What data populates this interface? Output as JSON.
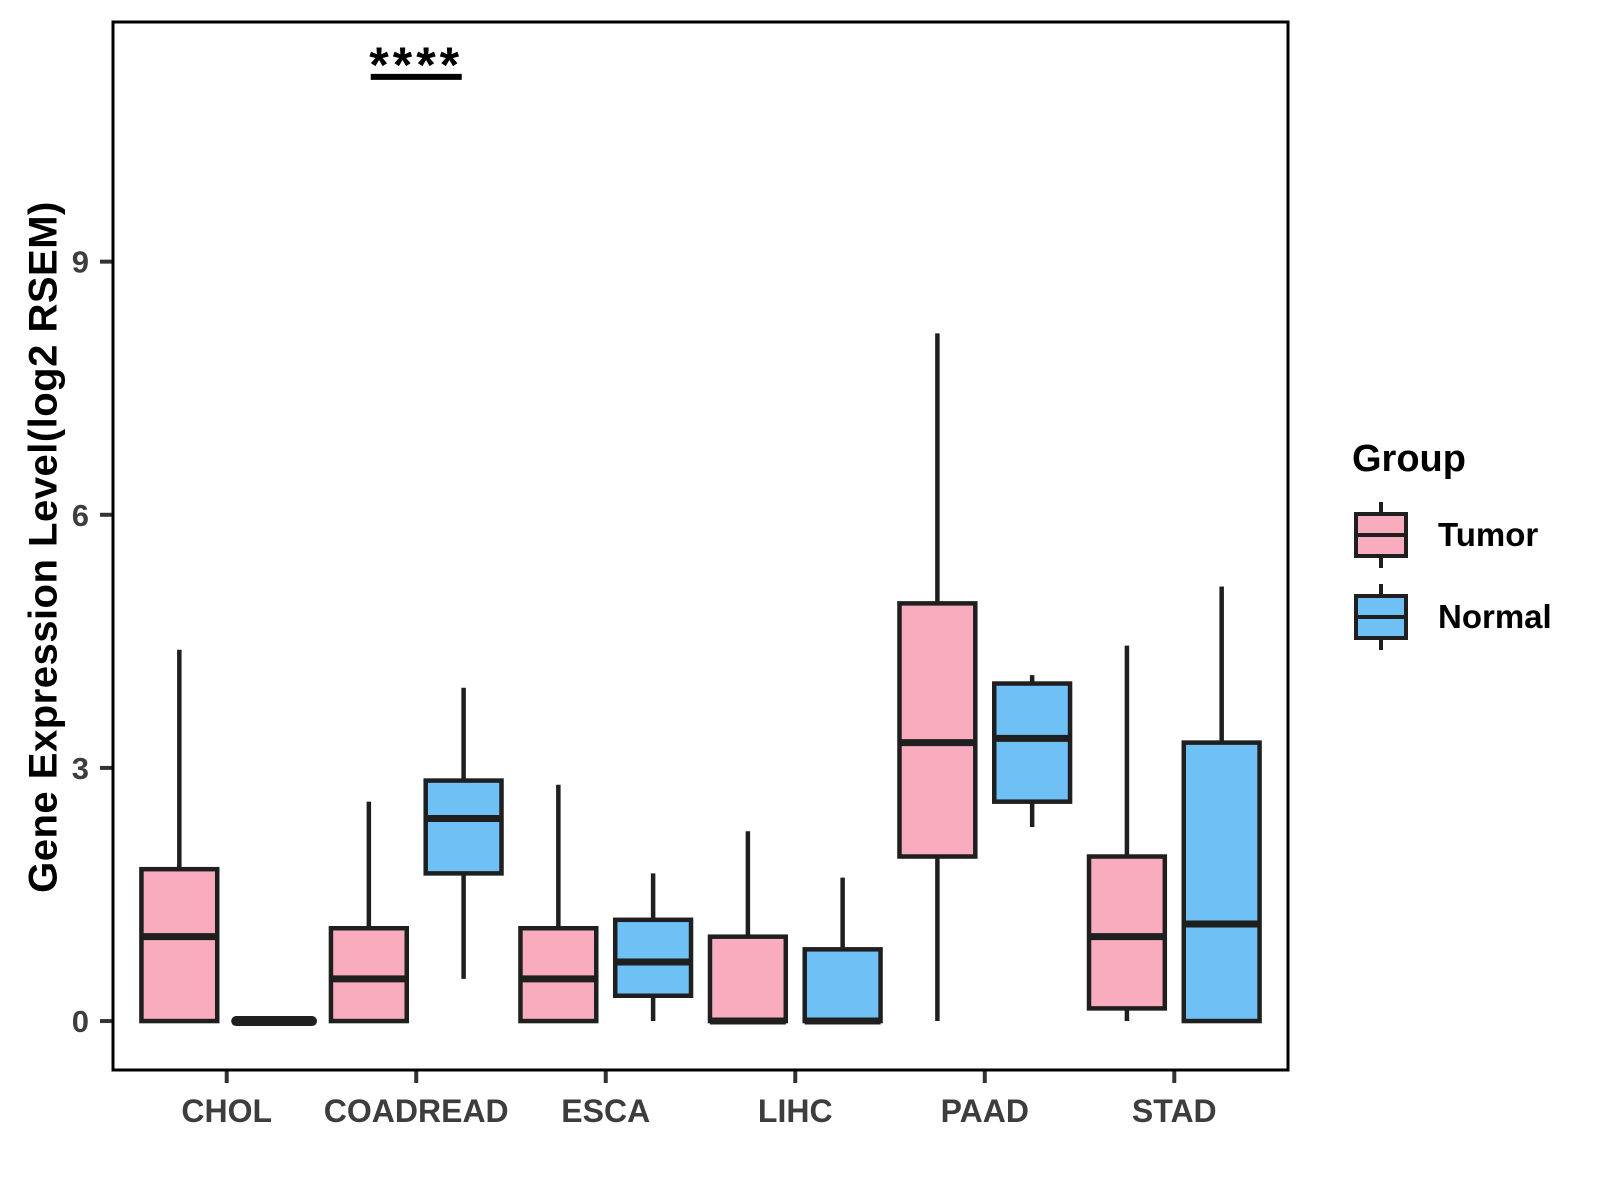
{
  "figure": {
    "legend": {
      "title": "Group",
      "entries": [
        {
          "label": "Tumor",
          "color": "#F9ACBD"
        },
        {
          "label": "Normal",
          "color": "#6EC0F5"
        }
      ]
    }
  },
  "chart_data": {
    "type": "boxplot",
    "title": "",
    "xlabel": "",
    "ylabel": "Gene Expression Level(log2 RSEM)",
    "categories": [
      "CHOL",
      "COADREAD",
      "ESCA",
      "LIHC",
      "PAAD",
      "STAD"
    ],
    "yticks": [
      0,
      3,
      6,
      9
    ],
    "ylim": [
      -0.58,
      11.84
    ],
    "grid": false,
    "legend_position": "right",
    "colors": {
      "box_stroke": "#1F1F1F",
      "axis_text": "#3D3D3D",
      "panel_border": "#000000"
    },
    "series": [
      {
        "name": "Tumor",
        "fill": "#F9ACBD",
        "boxes": [
          {
            "category": "CHOL",
            "min": 0,
            "q1": 0,
            "median": 1.0,
            "q3": 1.8,
            "max": 4.4
          },
          {
            "category": "COADREAD",
            "min": 0,
            "q1": 0,
            "median": 0.5,
            "q3": 1.1,
            "max": 2.6
          },
          {
            "category": "ESCA",
            "min": 0,
            "q1": 0,
            "median": 0.5,
            "q3": 1.1,
            "max": 2.8
          },
          {
            "category": "LIHC",
            "min": 0,
            "q1": 0,
            "median": 0,
            "q3": 1.0,
            "max": 2.25
          },
          {
            "category": "PAAD",
            "min": 0,
            "q1": 1.95,
            "median": 3.3,
            "q3": 4.95,
            "max": 8.15
          },
          {
            "category": "STAD",
            "min": 0,
            "q1": 0.15,
            "median": 1.0,
            "q3": 1.95,
            "max": 4.45
          }
        ]
      },
      {
        "name": "Normal",
        "fill": "#6EC0F5",
        "boxes": [
          {
            "category": "CHOL",
            "min": 0,
            "q1": 0,
            "median": 0,
            "q3": 0,
            "max": 0
          },
          {
            "category": "COADREAD",
            "min": 0.5,
            "q1": 1.75,
            "median": 2.4,
            "q3": 2.85,
            "max": 3.95
          },
          {
            "category": "ESCA",
            "min": 0,
            "q1": 0.3,
            "median": 0.7,
            "q3": 1.2,
            "max": 1.75
          },
          {
            "category": "LIHC",
            "min": 0,
            "q1": 0,
            "median": 0,
            "q3": 0.85,
            "max": 1.7
          },
          {
            "category": "PAAD",
            "min": 2.3,
            "q1": 2.6,
            "median": 3.35,
            "q3": 4.0,
            "max": 4.1
          },
          {
            "category": "STAD",
            "min": 0,
            "q1": 0,
            "median": 1.15,
            "q3": 3.3,
            "max": 5.15
          }
        ]
      }
    ],
    "annotations": [
      {
        "text": "****",
        "category": "COADREAD",
        "text_y": 11.13,
        "underline_y": 11.19,
        "half_width_u": 0.24
      }
    ]
  }
}
